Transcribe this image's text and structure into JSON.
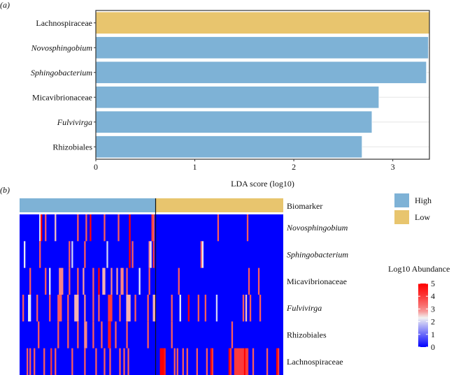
{
  "panel_labels": {
    "a": "(a)",
    "b": "(b)"
  },
  "colors": {
    "high": "#7EB2D6",
    "low": "#E8C56E",
    "scale_low": "#0000FF",
    "scale_mid": "#F2F2F2",
    "scale_high": "#FF0000"
  },
  "chart_data": [
    {
      "type": "bar",
      "orientation": "horizontal",
      "xlabel": "LDA score (log10)",
      "xlim": [
        0,
        3.37
      ],
      "xticks": [
        0,
        1,
        2,
        3
      ],
      "grid": true,
      "categories": [
        "Lachnospiraceae",
        "Novosphingobium",
        "Sphingobacterium",
        "Micavibrionaceae",
        "Fulvivirga",
        "Rhizobiales"
      ],
      "italic": [
        false,
        true,
        true,
        false,
        true,
        false
      ],
      "values": [
        3.37,
        3.36,
        3.34,
        2.86,
        2.79,
        2.69
      ],
      "group": [
        "Low",
        "High",
        "High",
        "High",
        "High",
        "High"
      ]
    },
    {
      "type": "heatmap",
      "n_samples": 188,
      "n_high": 97,
      "annotation_title": "Biomarker",
      "annotation_legend": [
        "High",
        "Low"
      ],
      "color_title": "Log10 Abundance",
      "color_ticks": [
        0,
        1,
        2,
        3,
        4,
        5
      ],
      "color_range": [
        0,
        5
      ],
      "default_value": 0,
      "rows": [
        {
          "name": "Novosphingobium",
          "italic": true,
          "cells": [
            [
              14,
              2.2
            ],
            [
              15,
              5
            ],
            [
              18,
              3.5
            ],
            [
              25,
              2.5
            ],
            [
              41,
              3.5
            ],
            [
              47,
              3.5
            ],
            [
              50,
              5
            ],
            [
              60,
              3.5
            ],
            [
              70,
              3.5
            ],
            [
              78,
              5
            ],
            [
              94,
              4
            ],
            [
              95,
              3.5
            ],
            [
              141,
              3.5
            ],
            [
              162,
              3.5
            ]
          ]
        },
        {
          "name": "Sphingobacterium",
          "italic": true,
          "cells": [
            [
              3,
              2.2
            ],
            [
              14,
              3.5
            ],
            [
              35,
              3.5
            ],
            [
              37,
              2
            ],
            [
              46,
              3.5
            ],
            [
              62,
              2
            ],
            [
              78,
              5
            ],
            [
              80,
              3.5
            ],
            [
              92,
              3
            ],
            [
              93,
              2.2
            ],
            [
              95,
              4
            ],
            [
              129,
              3.5
            ],
            [
              130,
              2.2
            ]
          ]
        },
        {
          "name": "Micavibrionaceae",
          "italic": false,
          "cells": [
            [
              7,
              3.5
            ],
            [
              18,
              3.5
            ],
            [
              21,
              2.2
            ],
            [
              28,
              3
            ],
            [
              29,
              3
            ],
            [
              30,
              3
            ],
            [
              35,
              3.5
            ],
            [
              41,
              3.5
            ],
            [
              45,
              2.8
            ],
            [
              52,
              3.5
            ],
            [
              56,
              5
            ],
            [
              59,
              2.6
            ],
            [
              60,
              2.6
            ],
            [
              65,
              3
            ],
            [
              69,
              2.8
            ],
            [
              72,
              3
            ],
            [
              73,
              3
            ],
            [
              76,
              3.5
            ],
            [
              85,
              2.2
            ],
            [
              92,
              3.5
            ],
            [
              113,
              3.5
            ],
            [
              163,
              3.5
            ],
            [
              170,
              3.5
            ]
          ]
        },
        {
          "name": "Fulvivirga",
          "italic": true,
          "cells": [
            [
              2,
              3.5
            ],
            [
              6,
              2.2
            ],
            [
              7,
              2.2
            ],
            [
              12,
              3.5
            ],
            [
              21,
              3.5
            ],
            [
              27,
              3.5
            ],
            [
              28,
              3.5
            ],
            [
              29,
              3.5
            ],
            [
              34,
              3.5
            ],
            [
              39,
              2.6
            ],
            [
              40,
              2.6
            ],
            [
              41,
              2.6
            ],
            [
              46,
              3
            ],
            [
              52,
              3.5
            ],
            [
              56,
              3.5
            ],
            [
              63,
              4
            ],
            [
              64,
              4
            ],
            [
              65,
              4
            ],
            [
              71,
              3.5
            ],
            [
              76,
              2.6
            ],
            [
              77,
              2.6
            ],
            [
              78,
              2.6
            ],
            [
              82,
              3.5
            ],
            [
              91,
              3.5
            ],
            [
              95,
              2.6
            ],
            [
              96,
              2.6
            ],
            [
              108,
              3.5
            ],
            [
              114,
              2.2
            ],
            [
              120,
              5
            ],
            [
              127,
              3.5
            ],
            [
              132,
              3.5
            ],
            [
              140,
              2
            ],
            [
              159,
              3.5
            ],
            [
              161,
              2.5
            ],
            [
              164,
              3.5
            ],
            [
              171,
              3.5
            ]
          ]
        },
        {
          "name": "Rhizobiales",
          "italic": false,
          "cells": [
            [
              13,
              3.5
            ],
            [
              27,
              3.5
            ],
            [
              34,
              3.5
            ],
            [
              41,
              3.5
            ],
            [
              46,
              3
            ],
            [
              47,
              3
            ],
            [
              52,
              3.5
            ],
            [
              58,
              3.5
            ],
            [
              63,
              4.5
            ],
            [
              64,
              4.5
            ],
            [
              68,
              3.5
            ],
            [
              76,
              3.5
            ],
            [
              91,
              3.5
            ],
            [
              108,
              3.5
            ],
            [
              151,
              3.5
            ]
          ]
        },
        {
          "name": "Lachnospiraceae",
          "italic": false,
          "cells": [
            [
              5,
              3.5
            ],
            [
              7,
              3.5
            ],
            [
              10,
              3.5
            ],
            [
              17,
              3.5
            ],
            [
              22,
              4
            ],
            [
              25,
              3.5
            ],
            [
              37,
              3.5
            ],
            [
              46,
              3.5
            ],
            [
              54,
              3.5
            ],
            [
              60,
              3.5
            ],
            [
              64,
              3.5
            ],
            [
              71,
              3.5
            ],
            [
              74,
              3.5
            ],
            [
              77,
              3.5
            ],
            [
              100,
              5
            ],
            [
              101,
              5
            ],
            [
              102,
              5
            ],
            [
              103,
              4.5
            ],
            [
              110,
              3.5
            ],
            [
              112,
              3.5
            ],
            [
              116,
              3.5
            ],
            [
              119,
              3.5
            ],
            [
              126,
              3.5
            ],
            [
              133,
              3.5
            ],
            [
              136,
              5
            ],
            [
              137,
              4
            ],
            [
              149,
              5
            ],
            [
              150,
              4
            ],
            [
              153,
              4
            ],
            [
              154,
              4
            ],
            [
              155,
              4
            ],
            [
              156,
              4
            ],
            [
              157,
              4
            ],
            [
              158,
              4
            ],
            [
              159,
              4
            ],
            [
              160,
              5
            ],
            [
              161,
              4
            ],
            [
              162,
              4
            ],
            [
              166,
              3.5
            ],
            [
              176,
              3.5
            ],
            [
              183,
              5
            ],
            [
              184,
              4
            ]
          ]
        }
      ]
    }
  ]
}
